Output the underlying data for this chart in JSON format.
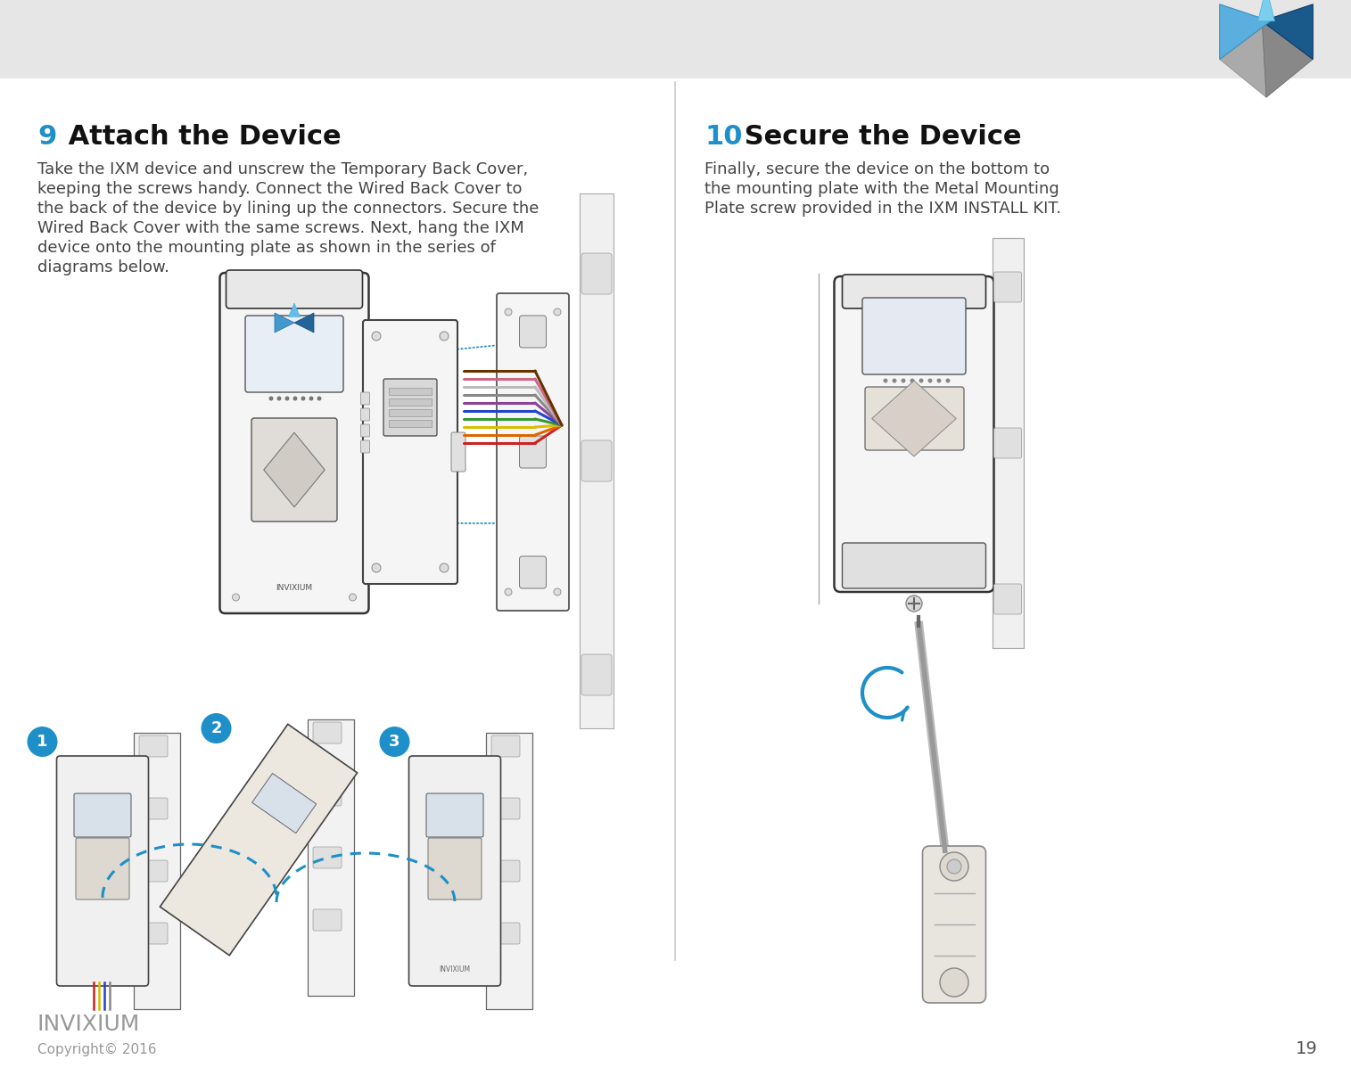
{
  "background_color": "#ffffff",
  "header_bar_color": "#e6e6e6",
  "page_number": "19",
  "copyright_text": "Copyright© 2016",
  "invixium_text": "INVIXIUM",
  "section9_number": "9",
  "section9_title": " Attach the Device",
  "section9_body_lines": [
    "Take the IXM device and unscrew the Temporary Back Cover,",
    "keeping the screws handy. Connect the Wired Back Cover to",
    "the back of the device by lining up the connectors. Secure the",
    "Wired Back Cover with the same screws. Next, hang the IXM",
    "device onto the mounting plate as shown in the series of",
    "diagrams below."
  ],
  "section10_number": "10",
  "section10_title": " Secure the Device",
  "section10_body_lines": [
    "Finally, secure the device on the bottom to",
    "the mounting plate with the Metal Mounting",
    "Plate screw provided in the IXM INSTALL KIT."
  ],
  "accent_color": "#1e8fc8",
  "text_color": "#444444",
  "title_color": "#111111",
  "number_color": "#1e8fc8",
  "invixium_color": "#999999",
  "copyright_color": "#999999",
  "page_num_color": "#555555",
  "circle_color": "#1e8fc8",
  "circle_text_color": "#ffffff",
  "wire_colors": [
    "#cc2222",
    "#dd6600",
    "#ddbb00",
    "#339933",
    "#2244cc",
    "#884499",
    "#888888",
    "#bbbbbb",
    "#cc6688",
    "#663300"
  ],
  "line_color": "#555555",
  "light_gray": "#f2f2f2",
  "mid_gray": "#dddddd",
  "dark_gray": "#888888"
}
